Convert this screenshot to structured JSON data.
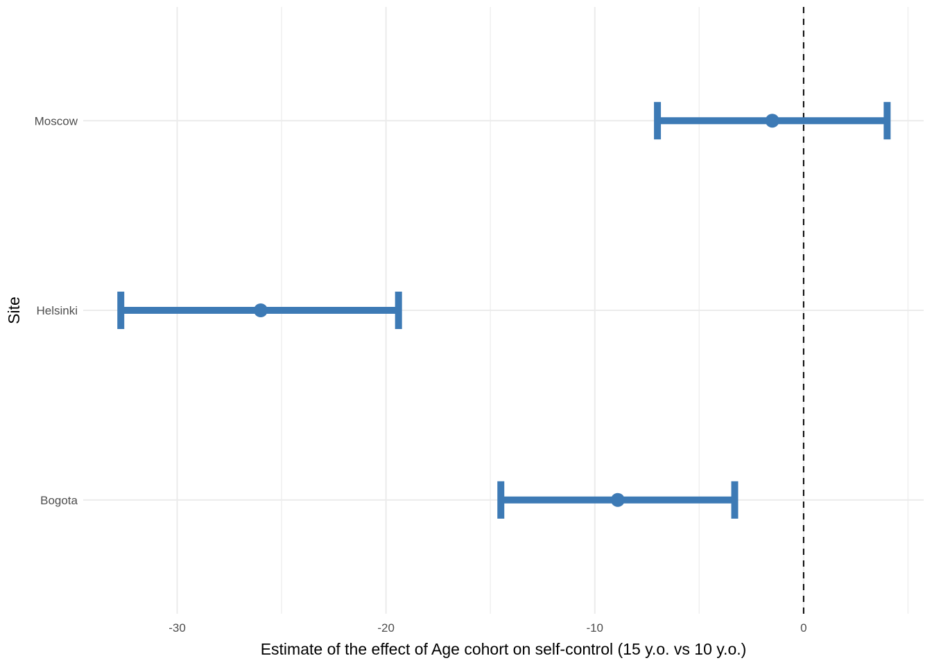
{
  "chart_data": {
    "type": "scatter",
    "subtype": "pointrange-forest-plot",
    "title": "",
    "xlabel": "Estimate of the effect of Age cohort on self-control (15 y.o. vs 10 y.o.)",
    "ylabel": "Site",
    "x_ticks": [
      -30,
      -20,
      -10,
      0
    ],
    "x_tick_labels": [
      "-30",
      "-20",
      "-10",
      "0"
    ],
    "x_minor_ticks": [
      -25,
      -15,
      -5,
      5
    ],
    "x_domain": [
      -34.5,
      5.75
    ],
    "y_domain": [
      0.4,
      3.6
    ],
    "reference_line_x": 0,
    "categories": [
      "Moscow",
      "Helsinki",
      "Bogota"
    ],
    "category_positions": [
      3,
      2,
      1
    ],
    "series": [
      {
        "site": "Moscow",
        "estimate": -1.5,
        "ci_low": -7.0,
        "ci_high": 4.0
      },
      {
        "site": "Helsinki",
        "estimate": -26.0,
        "ci_low": -32.7,
        "ci_high": -19.4
      },
      {
        "site": "Bogota",
        "estimate": -8.9,
        "ci_low": -14.5,
        "ci_high": -3.3
      }
    ],
    "grid": true,
    "legend": false,
    "colors": {
      "pointrange": "#3D7AB5",
      "grid_major": "#EBEBEB",
      "grid_minor": "#F0F0F0",
      "axis_text": "#4D4D4D",
      "axis_title": "#000000",
      "reference_line": "#000000",
      "background": "#FFFFFF"
    }
  }
}
